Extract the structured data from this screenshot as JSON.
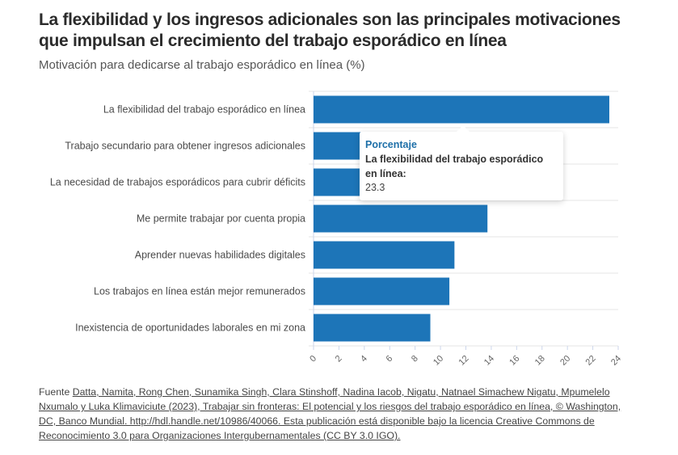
{
  "title": "La flexibilidad y los ingresos adicionales son las principales motivaciones que impulsan el crecimiento del trabajo esporádico en línea",
  "subtitle": "Motivación para dedicarse al trabajo esporádico en línea (%)",
  "colors": {
    "bar": "#1d75b8",
    "grid": "#e6e6e6",
    "tooltip_title": "#1d6fa8"
  },
  "chart_data": {
    "type": "bar",
    "orientation": "horizontal",
    "title": "La flexibilidad y los ingresos adicionales son las principales motivaciones que impulsan el crecimiento del trabajo esporádico en línea",
    "subtitle": "Motivación para dedicarse al trabajo esporádico en línea (%)",
    "categories": [
      "La flexibilidad del trabajo esporádico en línea",
      "Trabajo secundario para obtener ingresos adicionales",
      "La necesidad de trabajos esporádicos para cubrir déficits",
      "Me permite trabajar por cuenta propia",
      "Aprender nuevas habilidades digitales",
      "Los trabajos en línea están mejor remunerados",
      "Inexistencia de oportunidades laborales en mi zona"
    ],
    "series": [
      {
        "name": "Porcentaje",
        "values": [
          23.3,
          18.9,
          14.6,
          13.7,
          11.1,
          10.7,
          9.2
        ]
      }
    ],
    "xlabel": "",
    "ylabel": "",
    "xlim": [
      0,
      24
    ],
    "xticks": [
      0,
      2,
      4,
      6,
      8,
      10,
      12,
      14,
      16,
      18,
      20,
      22,
      24
    ],
    "grid": true,
    "legend": "none"
  },
  "tooltip": {
    "title": "Porcentaje",
    "label": "La flexibilidad del trabajo esporádico en línea:",
    "value": "23.3"
  },
  "footer": {
    "prefix": "Fuente ",
    "source_text": "Datta, Namita, Rong Chen, Sunamika Singh, Clara Stinshoff, Nadina Iacob, Nigatu, Natnael Simachew Nigatu, Mpumelelo Nxumalo y Luka Klimaviciute (2023), Trabajar sin fronteras: El potencial y los riesgos del trabajo esporádico en línea, © Washington, DC, Banco Mundial. http://hdl.handle.net/10986/40066. Esta publicación está disponible bajo la licencia Creative Commons de Reconocimiento 3.0 para Organizaciones Intergubernamentales (CC BY 3.0 IGO)."
  }
}
